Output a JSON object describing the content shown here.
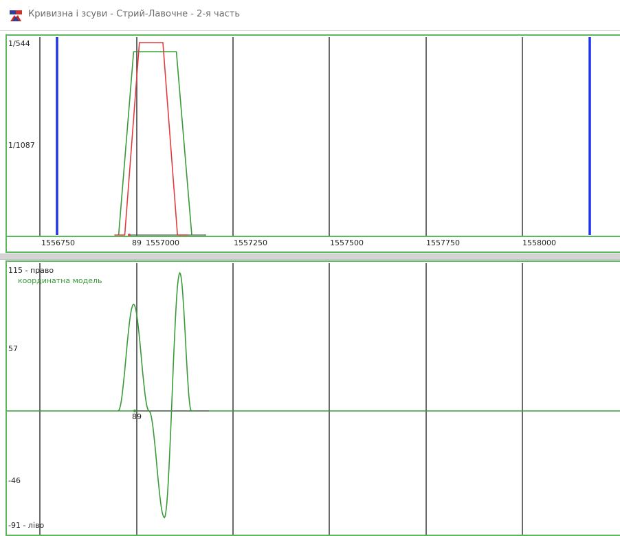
{
  "window": {
    "title": "Кривизна і зсуви - Стрий-Лавочне - 2-я часть",
    "icon": "app-logo-icon"
  },
  "curvature_panel": {
    "y_tick_labels": [
      "1/544",
      "1/1087"
    ],
    "x_tick_labels": [
      "1556750",
      "1557000",
      "1557250",
      "1557500",
      "1557750",
      "1558000"
    ],
    "start_marker_label": "89",
    "colors": {
      "model": "#3a9a3a",
      "design": "#e23b3b",
      "marker": "#1f33e8",
      "grid": "#444444",
      "border": "#5cb85c"
    }
  },
  "shift_panel": {
    "y_tick_labels": [
      "115 - право",
      "57",
      "-46",
      "-91 - ліво"
    ],
    "legend_label": "координатна модель",
    "start_marker_label": "89",
    "colors": {
      "curve": "#3a9a3a",
      "axis": "#3a9a3a",
      "grid": "#444444"
    }
  },
  "chart_data": [
    {
      "type": "line",
      "title": "",
      "xlabel": "",
      "ylabel": "",
      "x_ticks": [
        1556750,
        1557000,
        1557250,
        1557500,
        1557750,
        1558000
      ],
      "xlim": [
        1556700,
        1558180
      ],
      "y_ticks": [
        "1/544",
        "1/1087"
      ],
      "series": [
        {
          "x": [
            1556951,
            1556990,
            1557101,
            1557141
          ],
          "y": [
            0,
            0.001751,
            0.001751,
            0
          ]
        },
        {
          "x": [
            1556940,
            1556967,
            1557005,
            1557066,
            1557104,
            1557132
          ],
          "y": [
            0,
            0,
            0.001838,
            0.001838,
            0,
            0
          ]
        }
      ],
      "vertical_markers_x": [
        1556745,
        1558110
      ]
    },
    {
      "type": "line",
      "title": "",
      "xlabel": "",
      "ylabel": "",
      "y_ticks": [
        115,
        57,
        -46,
        -91
      ],
      "ylim": [
        -91,
        115
      ],
      "series": [
        {
          "name": "координатна модель",
          "x": [
            1556950,
            1556990,
            1557030,
            1557070,
            1557110,
            1557140,
            1557150
          ],
          "y": [
            0,
            85,
            0,
            -85,
            110,
            0,
            0
          ]
        }
      ]
    }
  ]
}
